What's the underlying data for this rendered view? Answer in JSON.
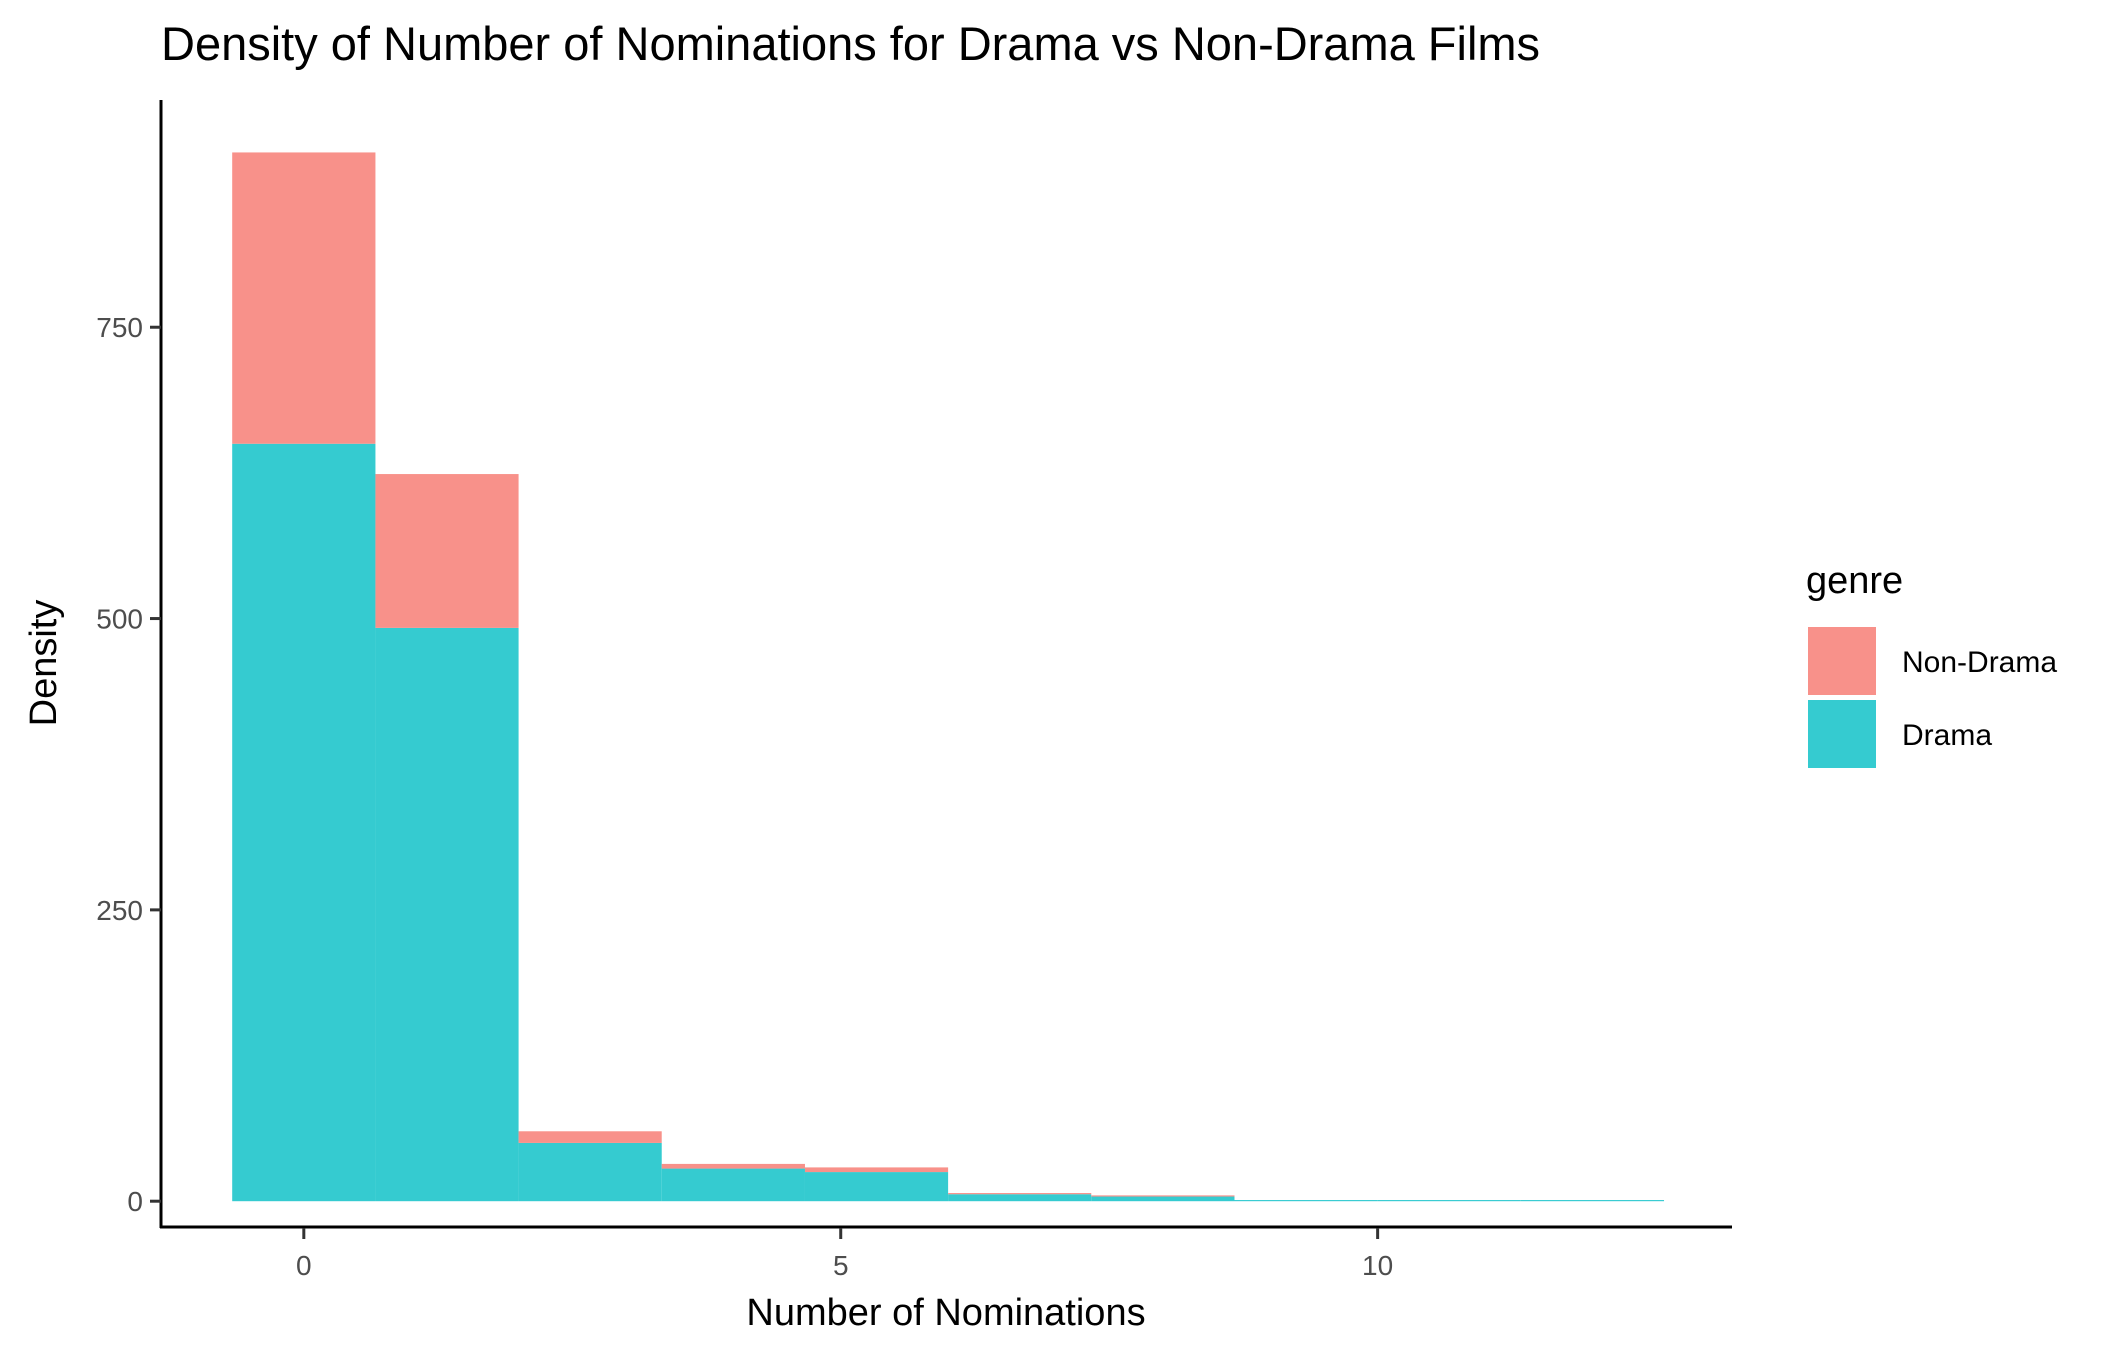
{
  "chart_data": {
    "type": "bar",
    "stacked": true,
    "title": "Density of Number of Nominations for Drama vs Non-Drama Films",
    "xlabel": "Number of Nominations",
    "ylabel": "Density",
    "xlim": [
      -1.33,
      13.3
    ],
    "ylim": [
      -23,
      945
    ],
    "x_ticks": [
      0,
      5,
      10
    ],
    "y_ticks": [
      0,
      250,
      500,
      750
    ],
    "grid": false,
    "bins": [
      [
        -0.667,
        0.667
      ],
      [
        0.667,
        2.0
      ],
      [
        2.0,
        3.333
      ],
      [
        3.333,
        4.667
      ],
      [
        4.667,
        6.0
      ],
      [
        6.0,
        7.333
      ],
      [
        7.333,
        8.667
      ],
      [
        8.667,
        10.0
      ],
      [
        10.0,
        11.333
      ],
      [
        11.333,
        12.667
      ]
    ],
    "series": [
      {
        "name": "Drama",
        "color": "#35CBD0",
        "values": [
          650,
          492,
          50,
          28,
          25,
          6,
          4,
          1,
          1,
          1
        ]
      },
      {
        "name": "Non-Drama",
        "color": "#F8918A",
        "values": [
          250,
          132,
          10,
          4,
          4,
          1,
          1,
          0,
          0,
          0
        ]
      }
    ],
    "legend": {
      "title": "genre",
      "position": "right",
      "entries": [
        {
          "name": "Non-Drama",
          "color": "#F8918A"
        },
        {
          "name": "Drama",
          "color": "#35CBD0"
        }
      ]
    }
  }
}
